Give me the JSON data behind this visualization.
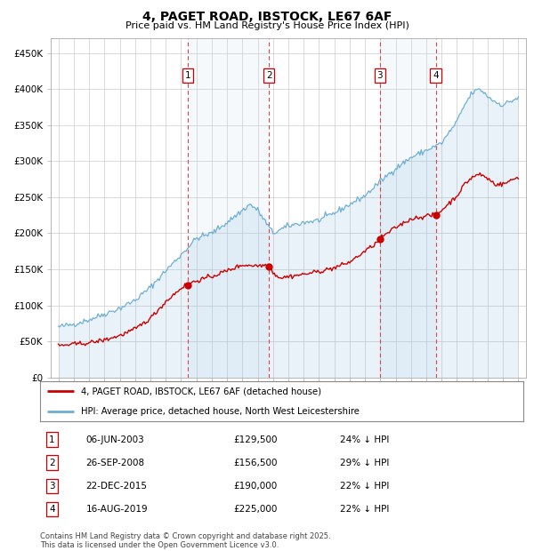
{
  "title": "4, PAGET ROAD, IBSTOCK, LE67 6AF",
  "subtitle": "Price paid vs. HM Land Registry's House Price Index (HPI)",
  "ylim": [
    0,
    470000
  ],
  "yticks": [
    0,
    50000,
    100000,
    150000,
    200000,
    250000,
    300000,
    350000,
    400000,
    450000
  ],
  "ytick_labels": [
    "£0",
    "£50K",
    "£100K",
    "£150K",
    "£200K",
    "£250K",
    "£300K",
    "£350K",
    "£400K",
    "£450K"
  ],
  "hpi_color": "#6baed6",
  "hpi_fill_color": "#cce0f0",
  "price_color": "#cc0000",
  "legend1_label": "4, PAGET ROAD, IBSTOCK, LE67 6AF (detached house)",
  "legend2_label": "HPI: Average price, detached house, North West Leicestershire",
  "transactions": [
    {
      "label": "1",
      "date": "06-JUN-2003",
      "price": 129500,
      "pct": "24%",
      "x_year": 2003.43
    },
    {
      "label": "2",
      "date": "26-SEP-2008",
      "price": 156500,
      "pct": "29%",
      "x_year": 2008.73
    },
    {
      "label": "3",
      "date": "22-DEC-2015",
      "price": 190000,
      "pct": "22%",
      "x_year": 2015.97
    },
    {
      "label": "4",
      "date": "16-AUG-2019",
      "price": 225000,
      "pct": "22%",
      "x_year": 2019.62
    }
  ],
  "footer": "Contains HM Land Registry data © Crown copyright and database right 2025.\nThis data is licensed under the Open Government Licence v3.0.",
  "xlim_start": 1994.5,
  "xlim_end": 2025.5
}
